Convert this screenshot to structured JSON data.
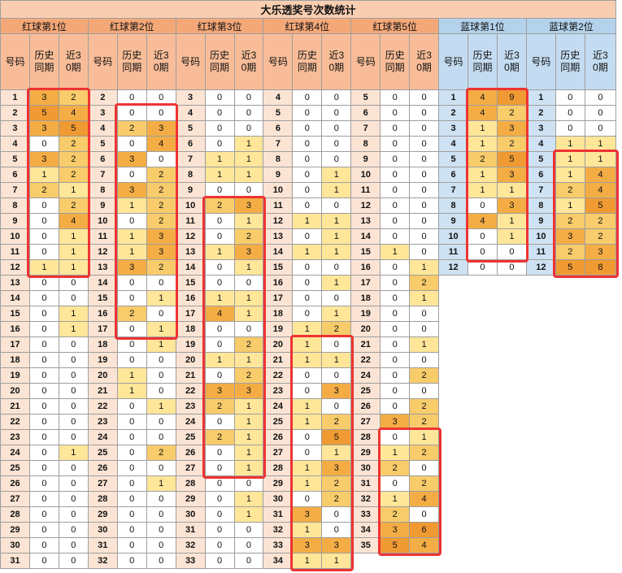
{
  "title": "大乐透奖号次数统计",
  "positions": [
    {
      "name": "红球第1位",
      "color": "red"
    },
    {
      "name": "红球第2位",
      "color": "red"
    },
    {
      "name": "红球第3位",
      "color": "red"
    },
    {
      "name": "红球第4位",
      "color": "red"
    },
    {
      "name": "红球第5位",
      "color": "red"
    },
    {
      "name": "蓝球第1位",
      "color": "blue"
    },
    {
      "name": "蓝球第2位",
      "color": "blue"
    }
  ],
  "subheaders": {
    "code": "号码",
    "hist": "历史同期",
    "recent": "近30期"
  },
  "groups": [
    [
      [
        1,
        3,
        2
      ],
      [
        2,
        5,
        4
      ],
      [
        3,
        3,
        5
      ],
      [
        4,
        0,
        2
      ],
      [
        5,
        3,
        2
      ],
      [
        6,
        1,
        2
      ],
      [
        7,
        2,
        1
      ],
      [
        8,
        0,
        2
      ],
      [
        9,
        0,
        4
      ],
      [
        10,
        0,
        1
      ],
      [
        11,
        0,
        1
      ],
      [
        12,
        1,
        1
      ],
      [
        13,
        0,
        0
      ],
      [
        14,
        0,
        0
      ],
      [
        15,
        0,
        1
      ],
      [
        16,
        0,
        1
      ],
      [
        17,
        0,
        0
      ],
      [
        18,
        0,
        0
      ],
      [
        19,
        0,
        0
      ],
      [
        20,
        0,
        0
      ],
      [
        21,
        0,
        0
      ],
      [
        22,
        0,
        0
      ],
      [
        23,
        0,
        0
      ],
      [
        24,
        0,
        1
      ],
      [
        25,
        0,
        0
      ],
      [
        26,
        0,
        0
      ],
      [
        27,
        0,
        0
      ],
      [
        28,
        0,
        0
      ],
      [
        29,
        0,
        0
      ],
      [
        30,
        0,
        0
      ],
      [
        31,
        0,
        0
      ]
    ],
    [
      [
        2,
        0,
        0
      ],
      [
        3,
        0,
        0
      ],
      [
        4,
        2,
        3
      ],
      [
        5,
        0,
        4
      ],
      [
        6,
        3,
        0
      ],
      [
        7,
        0,
        2
      ],
      [
        8,
        3,
        2
      ],
      [
        9,
        1,
        2
      ],
      [
        10,
        0,
        2
      ],
      [
        11,
        1,
        3
      ],
      [
        12,
        1,
        3
      ],
      [
        13,
        3,
        2
      ],
      [
        14,
        0,
        0
      ],
      [
        15,
        0,
        1
      ],
      [
        16,
        2,
        0
      ],
      [
        17,
        0,
        1
      ],
      [
        18,
        0,
        1
      ],
      [
        19,
        0,
        0
      ],
      [
        20,
        1,
        0
      ],
      [
        21,
        1,
        0
      ],
      [
        22,
        0,
        1
      ],
      [
        23,
        0,
        0
      ],
      [
        24,
        0,
        0
      ],
      [
        25,
        0,
        2
      ],
      [
        26,
        0,
        0
      ],
      [
        27,
        0,
        1
      ],
      [
        28,
        0,
        0
      ],
      [
        29,
        0,
        0
      ],
      [
        30,
        0,
        0
      ],
      [
        31,
        0,
        0
      ],
      [
        32,
        0,
        0
      ]
    ],
    [
      [
        3,
        0,
        0
      ],
      [
        4,
        0,
        0
      ],
      [
        5,
        0,
        0
      ],
      [
        6,
        0,
        1
      ],
      [
        7,
        1,
        1
      ],
      [
        8,
        1,
        1
      ],
      [
        9,
        0,
        0
      ],
      [
        10,
        2,
        3
      ],
      [
        11,
        0,
        1
      ],
      [
        12,
        0,
        2
      ],
      [
        13,
        1,
        3
      ],
      [
        14,
        0,
        1
      ],
      [
        15,
        0,
        0
      ],
      [
        16,
        1,
        1
      ],
      [
        17,
        4,
        1
      ],
      [
        18,
        0,
        0
      ],
      [
        19,
        0,
        2
      ],
      [
        20,
        1,
        1
      ],
      [
        21,
        0,
        2
      ],
      [
        22,
        3,
        3
      ],
      [
        23,
        2,
        1
      ],
      [
        24,
        0,
        1
      ],
      [
        25,
        2,
        1
      ],
      [
        26,
        0,
        1
      ],
      [
        27,
        0,
        1
      ],
      [
        28,
        0,
        0
      ],
      [
        29,
        0,
        1
      ],
      [
        30,
        0,
        1
      ],
      [
        31,
        0,
        0
      ],
      [
        32,
        0,
        0
      ],
      [
        33,
        0,
        0
      ]
    ],
    [
      [
        4,
        0,
        0
      ],
      [
        5,
        0,
        0
      ],
      [
        6,
        0,
        0
      ],
      [
        7,
        0,
        0
      ],
      [
        8,
        0,
        0
      ],
      [
        9,
        0,
        1
      ],
      [
        10,
        0,
        1
      ],
      [
        11,
        0,
        0
      ],
      [
        12,
        1,
        1
      ],
      [
        13,
        0,
        1
      ],
      [
        14,
        1,
        1
      ],
      [
        15,
        0,
        0
      ],
      [
        16,
        0,
        1
      ],
      [
        17,
        0,
        0
      ],
      [
        18,
        0,
        1
      ],
      [
        19,
        1,
        2
      ],
      [
        20,
        1,
        0
      ],
      [
        21,
        1,
        1
      ],
      [
        22,
        0,
        0
      ],
      [
        23,
        0,
        3
      ],
      [
        24,
        1,
        0
      ],
      [
        25,
        1,
        2
      ],
      [
        26,
        0,
        5
      ],
      [
        27,
        0,
        1
      ],
      [
        28,
        1,
        3
      ],
      [
        29,
        1,
        2
      ],
      [
        30,
        0,
        2
      ],
      [
        31,
        3,
        0
      ],
      [
        32,
        1,
        0
      ],
      [
        33,
        3,
        3
      ],
      [
        34,
        1,
        1
      ]
    ],
    [
      [
        5,
        0,
        0
      ],
      [
        6,
        0,
        0
      ],
      [
        7,
        0,
        0
      ],
      [
        8,
        0,
        0
      ],
      [
        9,
        0,
        0
      ],
      [
        10,
        0,
        0
      ],
      [
        11,
        0,
        0
      ],
      [
        12,
        0,
        0
      ],
      [
        13,
        0,
        0
      ],
      [
        14,
        0,
        0
      ],
      [
        15,
        1,
        0
      ],
      [
        16,
        0,
        1
      ],
      [
        17,
        0,
        2
      ],
      [
        18,
        0,
        1
      ],
      [
        19,
        0,
        0
      ],
      [
        20,
        0,
        0
      ],
      [
        21,
        0,
        1
      ],
      [
        22,
        0,
        0
      ],
      [
        24,
        0,
        2
      ],
      [
        25,
        0,
        0
      ],
      [
        26,
        0,
        2
      ],
      [
        27,
        3,
        2
      ],
      [
        28,
        0,
        1
      ],
      [
        29,
        1,
        2
      ],
      [
        30,
        2,
        0
      ],
      [
        31,
        0,
        2
      ],
      [
        32,
        1,
        4
      ],
      [
        33,
        2,
        0
      ],
      [
        34,
        3,
        6
      ],
      [
        35,
        5,
        4
      ]
    ],
    [
      [
        1,
        4,
        9
      ],
      [
        2,
        4,
        2
      ],
      [
        3,
        1,
        3
      ],
      [
        4,
        1,
        2
      ],
      [
        5,
        2,
        5
      ],
      [
        6,
        1,
        3
      ],
      [
        7,
        1,
        1
      ],
      [
        8,
        0,
        3
      ],
      [
        9,
        4,
        1
      ],
      [
        10,
        0,
        1
      ],
      [
        11,
        0,
        0
      ],
      [
        12,
        0,
        0
      ]
    ],
    [
      [
        1,
        0,
        0
      ],
      [
        2,
        0,
        0
      ],
      [
        3,
        0,
        0
      ],
      [
        4,
        1,
        1
      ],
      [
        5,
        1,
        1
      ],
      [
        6,
        1,
        4
      ],
      [
        7,
        2,
        4
      ],
      [
        8,
        1,
        5
      ],
      [
        9,
        2,
        2
      ],
      [
        10,
        3,
        2
      ],
      [
        11,
        2,
        3
      ],
      [
        12,
        5,
        8
      ]
    ]
  ],
  "highlight_color": "#ee3333"
}
